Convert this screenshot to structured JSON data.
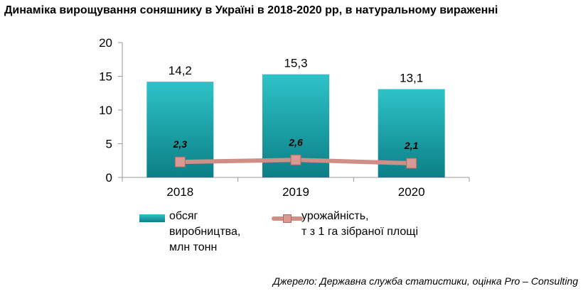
{
  "title": "Динаміка вирощування соняшнику в Україні в 2018-2020 рр, в натуральному вираженні",
  "source": "Джерело: Державна служба статистики, оцінка Pro – Consulting",
  "legend": {
    "bars_line1": "обсяг",
    "bars_line2": "виробництва,",
    "bars_line3": "млн тонн",
    "line_line1": "урожайність,",
    "line_line2": "т з 1 га зібраної площі"
  },
  "colors": {
    "bar_top": "#2ec3c8",
    "bar_bottom": "#0b7f86",
    "line": "#cf8e86",
    "marker": "#d89a92",
    "axis": "#999999"
  },
  "chart_data": {
    "type": "bar",
    "categories": [
      "2018",
      "2019",
      "2020"
    ],
    "series": [
      {
        "name": "обсяг виробництва, млн тонн",
        "type": "bar",
        "values": [
          14.2,
          15.3,
          13.1
        ],
        "labels": [
          "14,2",
          "15,3",
          "13,1"
        ]
      },
      {
        "name": "урожайність, т з 1 га зібраної площі",
        "type": "line",
        "values": [
          2.3,
          2.6,
          2.1
        ],
        "labels": [
          "2,3",
          "2,6",
          "2,1"
        ]
      }
    ],
    "ylim": [
      0,
      20
    ],
    "yticks": [
      "0",
      "5",
      "10",
      "15",
      "20"
    ],
    "grid": false,
    "legend_position": "bottom"
  }
}
